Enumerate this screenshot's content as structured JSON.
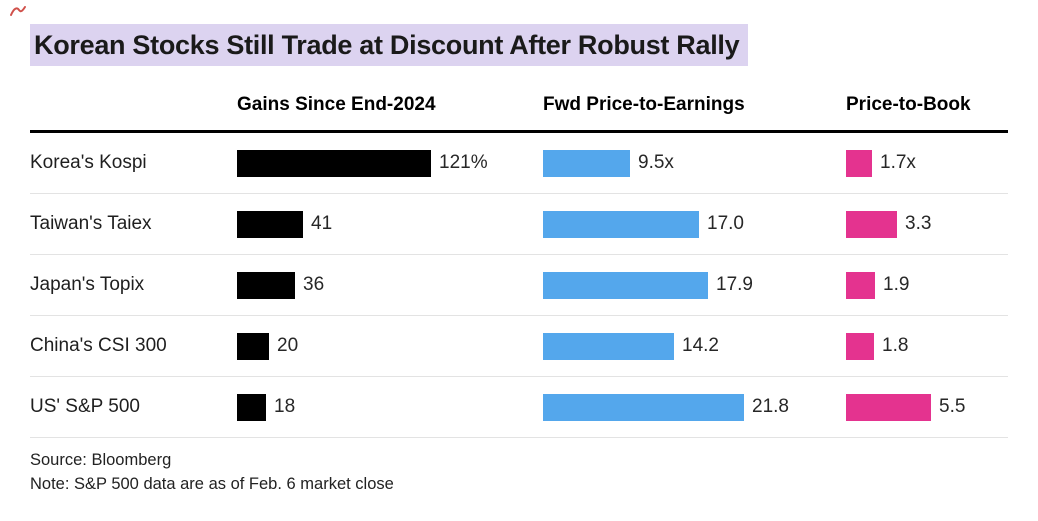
{
  "title": "Korean Stocks Still Trade at Discount After Robust Rally",
  "source": "Source: Bloomberg",
  "note": "Note: S&P 500 data are as of Feb. 6 market close",
  "colors": {
    "title_highlight": "#DCD3F0",
    "gains_bar": "#000000",
    "pe_bar": "#54A7EC",
    "pb_bar": "#E4338F",
    "annotation_mark": "#C8322B"
  },
  "chart_data": {
    "type": "bar",
    "orientation": "horizontal",
    "title": "Korean Stocks Still Trade at Discount After Robust Rally",
    "categories": [
      "Korea's Kospi",
      "Taiwan's Taiex",
      "Japan's Topix",
      "China's CSI 300",
      "US' S&P 500"
    ],
    "series": [
      {
        "name": "Gains Since End-2024",
        "values": [
          121,
          41,
          36,
          20,
          18
        ],
        "labels": [
          "121%",
          "41",
          "36",
          "20",
          "18"
        ],
        "color": "#000000",
        "xlim": [
          0,
          130
        ]
      },
      {
        "name": "Fwd Price-to-Earnings",
        "values": [
          9.5,
          17.0,
          17.9,
          14.2,
          21.8
        ],
        "labels": [
          "9.5x",
          "17.0",
          "17.9",
          "14.2",
          "21.8"
        ],
        "color": "#54A7EC",
        "xlim": [
          0,
          23
        ]
      },
      {
        "name": "Price-to-Book",
        "values": [
          1.7,
          3.3,
          1.9,
          1.8,
          5.5
        ],
        "labels": [
          "1.7x",
          "3.3",
          "1.9",
          "1.8",
          "5.5"
        ],
        "color": "#E4338F",
        "xlim": [
          0,
          6
        ]
      }
    ],
    "legend_position": "none",
    "grid": false
  }
}
